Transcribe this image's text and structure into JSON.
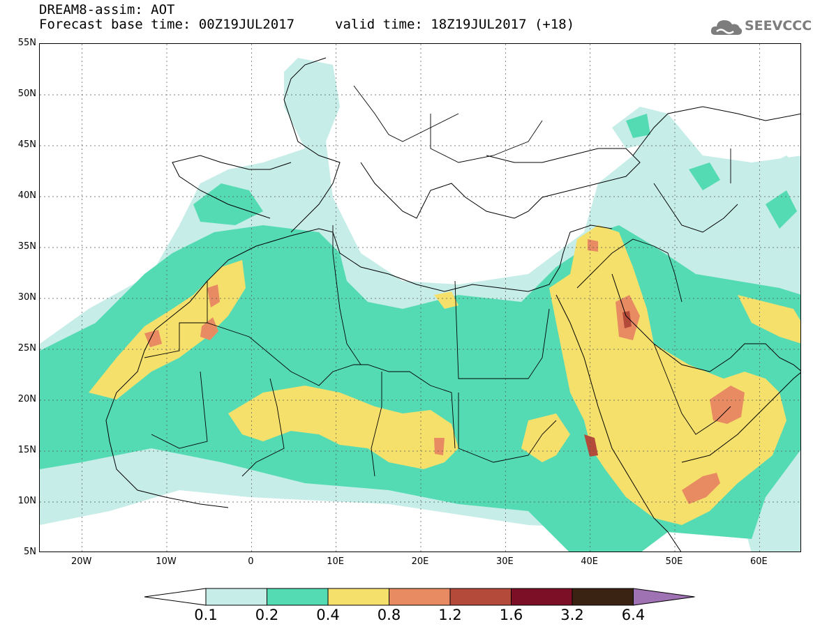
{
  "header": {
    "title_line1": "DREAM8-assim: AOT",
    "base_time": "Forecast base time: 00Z19JUL2017",
    "valid_time": "valid time: 18Z19JUL2017 (+18)"
  },
  "logo": {
    "text": "SEEVCCC",
    "icon": "cloud-icon"
  },
  "map": {
    "projection": "lat-lon",
    "lon_range": [
      -25,
      65
    ],
    "lat_range": [
      5,
      55
    ],
    "lat_labels": [
      "55N",
      "50N",
      "45N",
      "40N",
      "35N",
      "30N",
      "25N",
      "20N",
      "15N",
      "10N",
      "5N"
    ],
    "lon_labels": [
      "20W",
      "10W",
      "0",
      "10E",
      "20E",
      "30E",
      "40E",
      "50E",
      "60E"
    ],
    "grid": true
  },
  "legend": {
    "levels": [
      "0.1",
      "0.2",
      "0.4",
      "0.8",
      "1.2",
      "1.6",
      "3.2",
      "6.4"
    ],
    "colors": [
      "#c6ede8",
      "#55dbb4",
      "#f5e06c",
      "#e88b62",
      "#b44b3a",
      "#7c0e26",
      "#3b2313",
      "#9e72b3"
    ],
    "under_color": "#ffffff"
  }
}
